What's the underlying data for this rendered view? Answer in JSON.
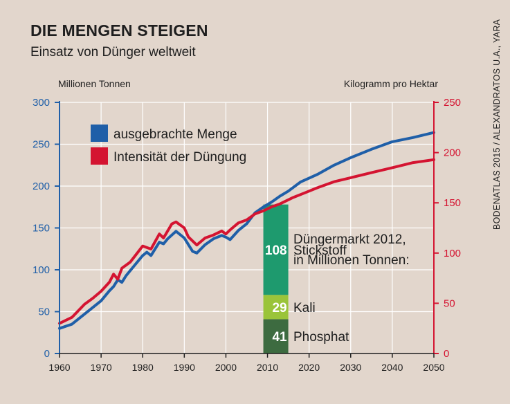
{
  "title": "DIE MENGEN STEIGEN",
  "subtitle": "Einsatz von Dünger weltweit",
  "unit_left": "Millionen Tonnen",
  "unit_right": "Kilogramm pro Hektar",
  "source": "BODENATLAS 2015 / ALEXANDRATOS U.A., YARA",
  "colors": {
    "menge": "#1f5fa8",
    "intensitaet": "#d41431",
    "stickstoff": "#1e9a6e",
    "kali": "#9ac43a",
    "phosphat": "#3d6b40"
  },
  "chart_data": {
    "type": "line",
    "x_axis": {
      "range": [
        1960,
        2050
      ],
      "ticks": [
        "1960",
        "1970",
        "1980",
        "1990",
        "2000",
        "2010",
        "2020",
        "2030",
        "2040",
        "2050"
      ]
    },
    "y_left": {
      "range": [
        0,
        300
      ],
      "ticks": [
        "0",
        "50",
        "100",
        "150",
        "200",
        "250",
        "300"
      ]
    },
    "y_right": {
      "range": [
        0,
        250
      ],
      "ticks": [
        "0",
        "50",
        "100",
        "150",
        "200",
        "250"
      ]
    },
    "legend": {
      "placement": "top-left",
      "items": [
        "ausgebrachte Menge",
        "Intensität der Düngung"
      ]
    },
    "series": [
      {
        "name": "ausgebrachte Menge",
        "axis": "left",
        "points": [
          [
            1960,
            30
          ],
          [
            1963,
            35
          ],
          [
            1966,
            47
          ],
          [
            1968,
            55
          ],
          [
            1970,
            63
          ],
          [
            1972,
            75
          ],
          [
            1973,
            80
          ],
          [
            1974,
            88
          ],
          [
            1975,
            85
          ],
          [
            1976,
            93
          ],
          [
            1978,
            105
          ],
          [
            1980,
            117
          ],
          [
            1981,
            121
          ],
          [
            1982,
            117
          ],
          [
            1984,
            133
          ],
          [
            1985,
            131
          ],
          [
            1986,
            137
          ],
          [
            1988,
            146
          ],
          [
            1990,
            138
          ],
          [
            1991,
            130
          ],
          [
            1992,
            122
          ],
          [
            1993,
            120
          ],
          [
            1995,
            130
          ],
          [
            1997,
            137
          ],
          [
            1999,
            141
          ],
          [
            2000,
            139
          ],
          [
            2001,
            136
          ],
          [
            2003,
            147
          ],
          [
            2005,
            155
          ],
          [
            2007,
            168
          ],
          [
            2009,
            175
          ],
          [
            2011,
            181
          ],
          [
            2013,
            188
          ],
          [
            2015,
            194
          ],
          [
            2018,
            205
          ],
          [
            2022,
            214
          ],
          [
            2026,
            225
          ],
          [
            2030,
            234
          ],
          [
            2035,
            244
          ],
          [
            2040,
            253
          ],
          [
            2045,
            258
          ],
          [
            2050,
            264
          ]
        ]
      },
      {
        "name": "Intensität der Düngung",
        "axis": "right",
        "points": [
          [
            1960,
            30
          ],
          [
            1963,
            36
          ],
          [
            1966,
            49
          ],
          [
            1968,
            55
          ],
          [
            1970,
            62
          ],
          [
            1972,
            71
          ],
          [
            1973,
            79
          ],
          [
            1974,
            74
          ],
          [
            1975,
            85
          ],
          [
            1977,
            91
          ],
          [
            1980,
            107
          ],
          [
            1982,
            104
          ],
          [
            1984,
            119
          ],
          [
            1985,
            115
          ],
          [
            1987,
            129
          ],
          [
            1988,
            131
          ],
          [
            1990,
            125
          ],
          [
            1991,
            116
          ],
          [
            1993,
            108
          ],
          [
            1995,
            115
          ],
          [
            1997,
            118
          ],
          [
            1999,
            122
          ],
          [
            2000,
            119
          ],
          [
            2001,
            123
          ],
          [
            2003,
            130
          ],
          [
            2005,
            133
          ],
          [
            2007,
            139
          ],
          [
            2009,
            142
          ],
          [
            2011,
            146
          ],
          [
            2013,
            149
          ],
          [
            2016,
            155
          ],
          [
            2019,
            160
          ],
          [
            2022,
            165
          ],
          [
            2026,
            171
          ],
          [
            2030,
            175
          ],
          [
            2035,
            180
          ],
          [
            2040,
            185
          ],
          [
            2045,
            190
          ],
          [
            2050,
            193
          ]
        ]
      }
    ],
    "market": {
      "year_span": [
        2009,
        2015
      ],
      "title_line1": "Düngermarkt 2012,",
      "title_line2": "in Millionen Tonnen:",
      "segments": [
        {
          "name": "Phosphat",
          "value": 41,
          "label": "41"
        },
        {
          "name": "Kali",
          "value": 29,
          "label": "29"
        },
        {
          "name": "Stickstoff",
          "value": 108,
          "label": "108"
        }
      ]
    }
  }
}
